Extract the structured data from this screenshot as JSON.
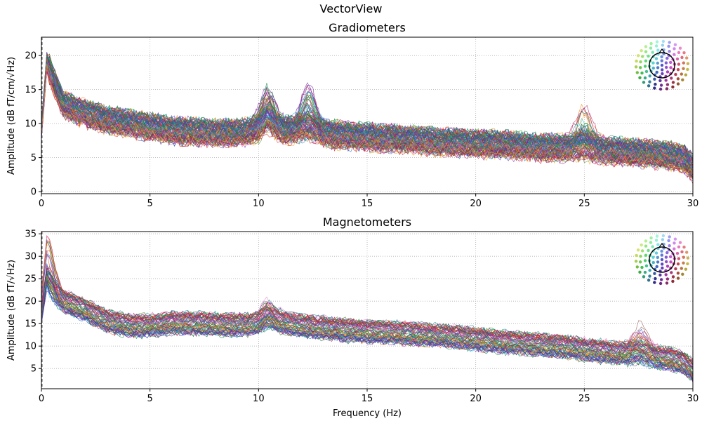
{
  "figure": {
    "suptitle": "VectorView",
    "xlabel": "Frequency (Hz)"
  },
  "chart_data": [
    {
      "type": "line",
      "title": "Gradiometers",
      "xlabel": "",
      "ylabel": "Amplitude (dB fT/cm/√Hz)",
      "xlim": [
        0,
        30
      ],
      "ylim": [
        -0.3,
        22.7
      ],
      "xticks": [
        0,
        5,
        10,
        15,
        20,
        25,
        30
      ],
      "yticks": [
        0,
        5,
        10,
        15,
        20
      ],
      "grid": true,
      "legend": "sensor-position color key (top-right inset)",
      "n_channels": 204,
      "profile": [
        [
          0,
          9
        ],
        [
          0.25,
          19
        ],
        [
          0.6,
          16
        ],
        [
          1.0,
          13
        ],
        [
          1.5,
          12
        ],
        [
          2.0,
          11.5
        ],
        [
          3.0,
          10.5
        ],
        [
          4.0,
          10
        ],
        [
          5.0,
          9.5
        ],
        [
          6.0,
          9
        ],
        [
          7.0,
          8.8
        ],
        [
          8.0,
          8.6
        ],
        [
          9.0,
          8.6
        ],
        [
          10.0,
          9.0
        ],
        [
          10.4,
          10.5
        ],
        [
          11.0,
          9.0
        ],
        [
          12.0,
          8.8
        ],
        [
          13.0,
          8.5
        ],
        [
          14.0,
          8.2
        ],
        [
          15.0,
          8.0
        ],
        [
          16.0,
          7.8
        ],
        [
          17.0,
          7.6
        ],
        [
          18.0,
          7.4
        ],
        [
          19.0,
          7.2
        ],
        [
          20.0,
          7.0
        ],
        [
          21.0,
          6.9
        ],
        [
          22.0,
          6.7
        ],
        [
          23.0,
          6.5
        ],
        [
          24.0,
          6.4
        ],
        [
          25.0,
          6.2
        ],
        [
          26.0,
          6.0
        ],
        [
          27.0,
          5.8
        ],
        [
          28.0,
          5.6
        ],
        [
          29.0,
          5.2
        ],
        [
          29.6,
          4.8
        ],
        [
          30.0,
          3.5
        ]
      ],
      "peaks": [
        {
          "x": 10.4,
          "y": 15.2
        },
        {
          "x": 12.3,
          "y": 15.0
        },
        {
          "x": 25.0,
          "y": 12.3
        }
      ]
    },
    {
      "type": "line",
      "title": "Magnetometers",
      "xlabel": "Frequency (Hz)",
      "ylabel": "Amplitude (dB fT/√Hz)",
      "xlim": [
        0,
        30
      ],
      "ylim": [
        0.5,
        35.5
      ],
      "xticks": [
        0,
        5,
        10,
        15,
        20,
        25,
        30
      ],
      "yticks": [
        5,
        10,
        15,
        20,
        25,
        30,
        35
      ],
      "grid": true,
      "legend": "sensor-position color key (top-right inset)",
      "n_channels": 102,
      "profile": [
        [
          0,
          16
        ],
        [
          0.25,
          24
        ],
        [
          0.6,
          21.5
        ],
        [
          1.0,
          20
        ],
        [
          1.5,
          19
        ],
        [
          2.0,
          18
        ],
        [
          3.0,
          15.5
        ],
        [
          4.0,
          14.5
        ],
        [
          5.0,
          14.5
        ],
        [
          6.0,
          15
        ],
        [
          7.0,
          15
        ],
        [
          8.0,
          14.8
        ],
        [
          9.0,
          14.6
        ],
        [
          10.0,
          14.8
        ],
        [
          10.4,
          16
        ],
        [
          11.0,
          15.2
        ],
        [
          12.0,
          14.5
        ],
        [
          13.0,
          14.0
        ],
        [
          14.0,
          13.5
        ],
        [
          15.0,
          13.2
        ],
        [
          16.0,
          13.0
        ],
        [
          17.0,
          12.7
        ],
        [
          18.0,
          12.4
        ],
        [
          19.0,
          12.0
        ],
        [
          20.0,
          11.5
        ],
        [
          21.0,
          11.0
        ],
        [
          22.0,
          10.6
        ],
        [
          23.0,
          10.2
        ],
        [
          24.0,
          9.8
        ],
        [
          25.0,
          9.2
        ],
        [
          26.0,
          8.7
        ],
        [
          27.0,
          8.2
        ],
        [
          28.0,
          7.6
        ],
        [
          29.0,
          7.0
        ],
        [
          29.6,
          6.2
        ],
        [
          30.0,
          4.5
        ]
      ],
      "peaks": [
        {
          "x": 0.3,
          "y": 34
        },
        {
          "x": 10.4,
          "y": 18.5
        },
        {
          "x": 27.6,
          "y": 15.0
        }
      ]
    }
  ]
}
